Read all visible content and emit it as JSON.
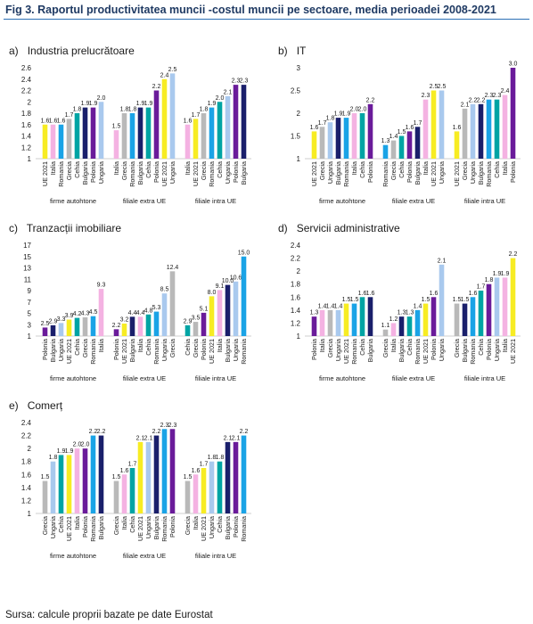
{
  "figure_title": "Fig 3. Raportul productivitatea muncii -costul muncii pe sectoare, media perioadei 2008-2021",
  "source": "Sursa: calcule proprii bazate pe date Eurostat",
  "colors": {
    "UE 2021": "#f7ec23",
    "Italia": "#f4b2e2",
    "Romania": "#1aa3e6",
    "Cehia": "#00a4a4",
    "Bulgaria": "#1a1f6b",
    "Polonia": "#6a1b9a",
    "Ungaria": "#a9c9ee",
    "Grecia": "#b9b9b9"
  },
  "chart_data": [
    {
      "type": "bar",
      "label": "a)",
      "title": "Industria prelucrătoare",
      "ylim": [
        1,
        2.6
      ],
      "yticks": [
        "1",
        "1.2",
        "1.4",
        "1.6",
        "1.8",
        "2",
        "2.2",
        "2.4",
        "2.6"
      ],
      "ytick_values": [
        1,
        1.2,
        1.4,
        1.6,
        1.8,
        2,
        2.2,
        2.4,
        2.6
      ],
      "groups": [
        {
          "name": "firme autohtone",
          "categories": [
            "UE 2021",
            "Italia",
            "Romania",
            "Grecia",
            "Cehia",
            "Bulgaria",
            "Polonia",
            "Ungaria"
          ],
          "values": [
            1.6,
            1.6,
            1.6,
            1.7,
            1.8,
            1.9,
            1.9,
            2.0
          ]
        },
        {
          "name": "filiale extra UE",
          "categories": [
            "Italia",
            "Grecia",
            "Romania",
            "Bulgaria",
            "Cehia",
            "Polonia",
            "UE 2021",
            "Ungaria"
          ],
          "values": [
            1.5,
            1.8,
            1.8,
            1.9,
            1.9,
            2.2,
            2.4,
            2.5
          ]
        },
        {
          "name": "filiale intra UE",
          "categories": [
            "Italia",
            "UE 2021",
            "Grecia",
            "Romania",
            "Cehia",
            "Ungaria",
            "Polonia",
            "Bulgaria"
          ],
          "values": [
            1.6,
            1.7,
            1.8,
            1.9,
            2.0,
            2.1,
            2.3,
            2.3
          ]
        }
      ]
    },
    {
      "type": "bar",
      "label": "b)",
      "title": "IT",
      "ylim": [
        1,
        3
      ],
      "yticks": [
        "1",
        "1.5",
        "2",
        "2.5",
        "3"
      ],
      "ytick_values": [
        1,
        1.5,
        2,
        2.5,
        3
      ],
      "groups": [
        {
          "name": "firme autohtone",
          "categories": [
            "UE 2021",
            "Grecia",
            "Ungaria",
            "Bulgaria",
            "Romania",
            "Italia",
            "Cehia",
            "Polonia"
          ],
          "values": [
            1.6,
            1.7,
            1.8,
            1.9,
            1.9,
            2.0,
            2.0,
            2.2
          ]
        },
        {
          "name": "filiale extra UE",
          "categories": [
            "Romania",
            "Grecia",
            "Cehia",
            "Polonia",
            "Bulgaria",
            "Italia",
            "UE 2021",
            "Ungaria"
          ],
          "values": [
            1.3,
            1.4,
            1.5,
            1.6,
            1.7,
            2.3,
            2.5,
            2.5
          ]
        },
        {
          "name": "filiale intra UE",
          "categories": [
            "UE 2021",
            "Grecia",
            "Ungaria",
            "Bulgaria",
            "Romania",
            "Cehia",
            "Italia",
            "Polonia"
          ],
          "values": [
            1.6,
            2.1,
            2.2,
            2.2,
            2.3,
            2.3,
            2.4,
            3.0
          ]
        }
      ]
    },
    {
      "type": "bar",
      "label": "c)",
      "title": "Tranzacții imobiliare",
      "ylim": [
        1,
        17
      ],
      "yticks": [
        "1",
        "3",
        "5",
        "7",
        "9",
        "11",
        "13",
        "15",
        "17"
      ],
      "ytick_values": [
        1,
        3,
        5,
        7,
        9,
        11,
        13,
        15,
        17
      ],
      "groups": [
        {
          "name": "firme autohtone",
          "categories": [
            "Polonia",
            "Bulgaria",
            "Ungaria",
            "UE 2021",
            "Cehia",
            "Grecia",
            "Romania",
            "Italia"
          ],
          "values": [
            2.5,
            2.9,
            3.3,
            3.9,
            4.2,
            4.3,
            4.5,
            9.3
          ]
        },
        {
          "name": "filiale extra UE",
          "categories": [
            "Polonia",
            "UE 2021",
            "Bulgaria",
            "Italia",
            "Cehia",
            "Romania",
            "Ungaria",
            "Grecia"
          ],
          "values": [
            2.2,
            3.2,
            4.4,
            4.4,
            4.8,
            5.3,
            8.5,
            12.4
          ]
        },
        {
          "name": "filiale intra UE",
          "categories": [
            "Cehia",
            "Grecia",
            "Polonia",
            "UE 2021",
            "Italia",
            "Bulgaria",
            "Ungaria",
            "Romania"
          ],
          "values": [
            2.9,
            3.5,
            5.1,
            8.0,
            9.1,
            10.0,
            10.6,
            15.0
          ]
        }
      ]
    },
    {
      "type": "bar",
      "label": "d)",
      "title": "Servicii administrative",
      "ylim": [
        1,
        2.4
      ],
      "yticks": [
        "1",
        "1.2",
        "1.4",
        "1.6",
        "1.8",
        "2",
        "2.2",
        "2.4"
      ],
      "ytick_values": [
        1,
        1.2,
        1.4,
        1.6,
        1.8,
        2,
        2.2,
        2.4
      ],
      "groups": [
        {
          "name": "firme autohtone",
          "categories": [
            "Polonia",
            "Italia",
            "Grecia",
            "Ungaria",
            "UE 2021",
            "Romania",
            "Cehia",
            "Bulgaria"
          ],
          "values": [
            1.3,
            1.4,
            1.4,
            1.4,
            1.5,
            1.5,
            1.6,
            1.6
          ]
        },
        {
          "name": "filiale extra UE",
          "categories": [
            "Grecia",
            "Italia",
            "Bulgaria",
            "Cehia",
            "Romania",
            "UE 2021",
            "Polonia",
            "Ungaria"
          ],
          "values": [
            1.1,
            1.2,
            1.3,
            1.3,
            1.4,
            1.5,
            1.6,
            2.1
          ]
        },
        {
          "name": "filiale intra UE",
          "categories": [
            "Grecia",
            "Bulgaria",
            "Romania",
            "Cehia",
            "Polonia",
            "Ungaria",
            "Italia",
            "UE 2021"
          ],
          "values": [
            1.5,
            1.5,
            1.6,
            1.7,
            1.8,
            1.9,
            1.9,
            2.2
          ]
        }
      ]
    },
    {
      "type": "bar",
      "label": "e)",
      "title": "Comerț",
      "ylim": [
        1,
        2.4
      ],
      "yticks": [
        "1",
        "1.2",
        "1.4",
        "1.6",
        "1.8",
        "2",
        "2.2",
        "2.4"
      ],
      "ytick_values": [
        1,
        1.2,
        1.4,
        1.6,
        1.8,
        2,
        2.2,
        2.4
      ],
      "groups": [
        {
          "name": "firme autohtone",
          "categories": [
            "Grecia",
            "Ungaria",
            "Cehia",
            "UE 2021",
            "Italia",
            "Polonia",
            "Romania",
            "Bulgaria"
          ],
          "values": [
            1.5,
            1.8,
            1.9,
            1.9,
            2.0,
            2.0,
            2.2,
            2.2
          ]
        },
        {
          "name": "filiale extra UE",
          "categories": [
            "Grecia",
            "Italia",
            "Cehia",
            "UE 2021",
            "Ungaria",
            "Bulgaria",
            "Romania",
            "Polonia"
          ],
          "values": [
            1.5,
            1.6,
            1.7,
            2.1,
            2.1,
            2.2,
            2.3,
            2.3
          ]
        },
        {
          "name": "filiale intra UE",
          "categories": [
            "Grecia",
            "Italia",
            "UE 2021",
            "Ungaria",
            "Cehia",
            "Bulgaria",
            "Polonia",
            "Romania"
          ],
          "values": [
            1.5,
            1.6,
            1.7,
            1.8,
            1.8,
            2.1,
            2.1,
            2.2
          ]
        }
      ]
    }
  ]
}
